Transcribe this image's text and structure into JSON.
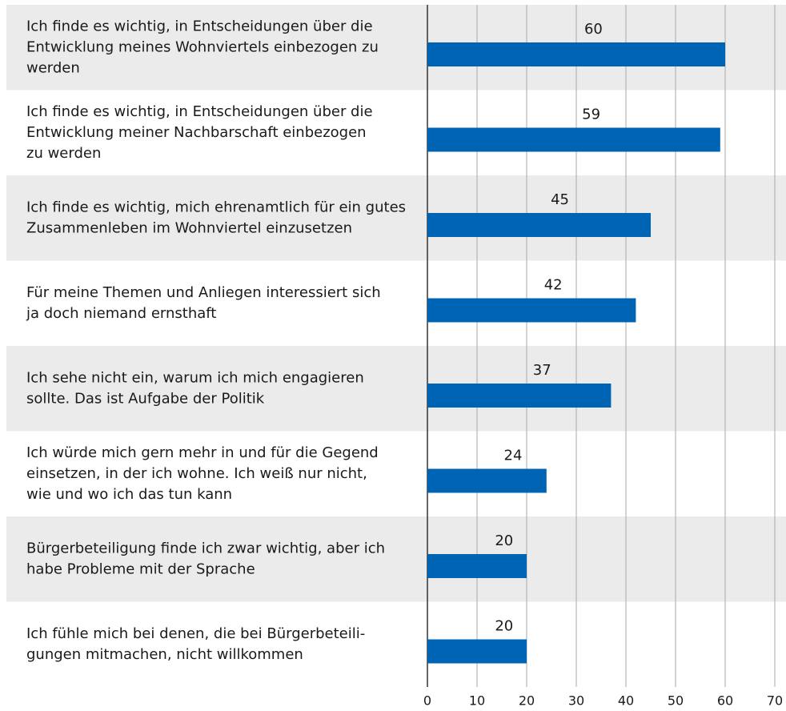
{
  "chart_data": {
    "type": "barh",
    "categories": [
      [
        "Ich finde es wichtig, in Entscheidungen über die",
        "Entwicklung meines Wohnviertels einbezogen zu",
        "werden"
      ],
      [
        "Ich finde es wichtig, in Entscheidungen über die",
        "Entwicklung meiner Nachbarschaft einbezogen",
        "zu werden"
      ],
      [
        "Ich finde es wichtig, mich ehrenamtlich für ein gutes",
        "Zusammenleben im Wohnviertel einzusetzen"
      ],
      [
        "Für meine Themen und Anliegen interessiert sich",
        "ja doch niemand ernsthaft"
      ],
      [
        "Ich sehe nicht ein, warum ich mich engagieren",
        "sollte. Das ist Aufgabe der Politik"
      ],
      [
        "Ich würde mich gern mehr in und für die Gegend",
        "einsetzen, in der ich wohne. Ich weiß nur nicht,",
        "wie und wo ich das tun kann"
      ],
      [
        "Bürgerbeteiligung finde ich zwar wichtig, aber ich",
        "habe Probleme mit der Sprache"
      ],
      [
        "Ich fühle mich bei denen, die bei Bürgerbeteili-",
        "gungen mitmachen, nicht willkommen"
      ]
    ],
    "values": [
      60,
      59,
      45,
      42,
      37,
      24,
      20,
      20
    ],
    "color": "#0064b4",
    "xlim": [
      0,
      70
    ],
    "xticks": [
      0,
      10,
      20,
      30,
      40,
      50,
      60,
      70
    ],
    "grid": true
  }
}
